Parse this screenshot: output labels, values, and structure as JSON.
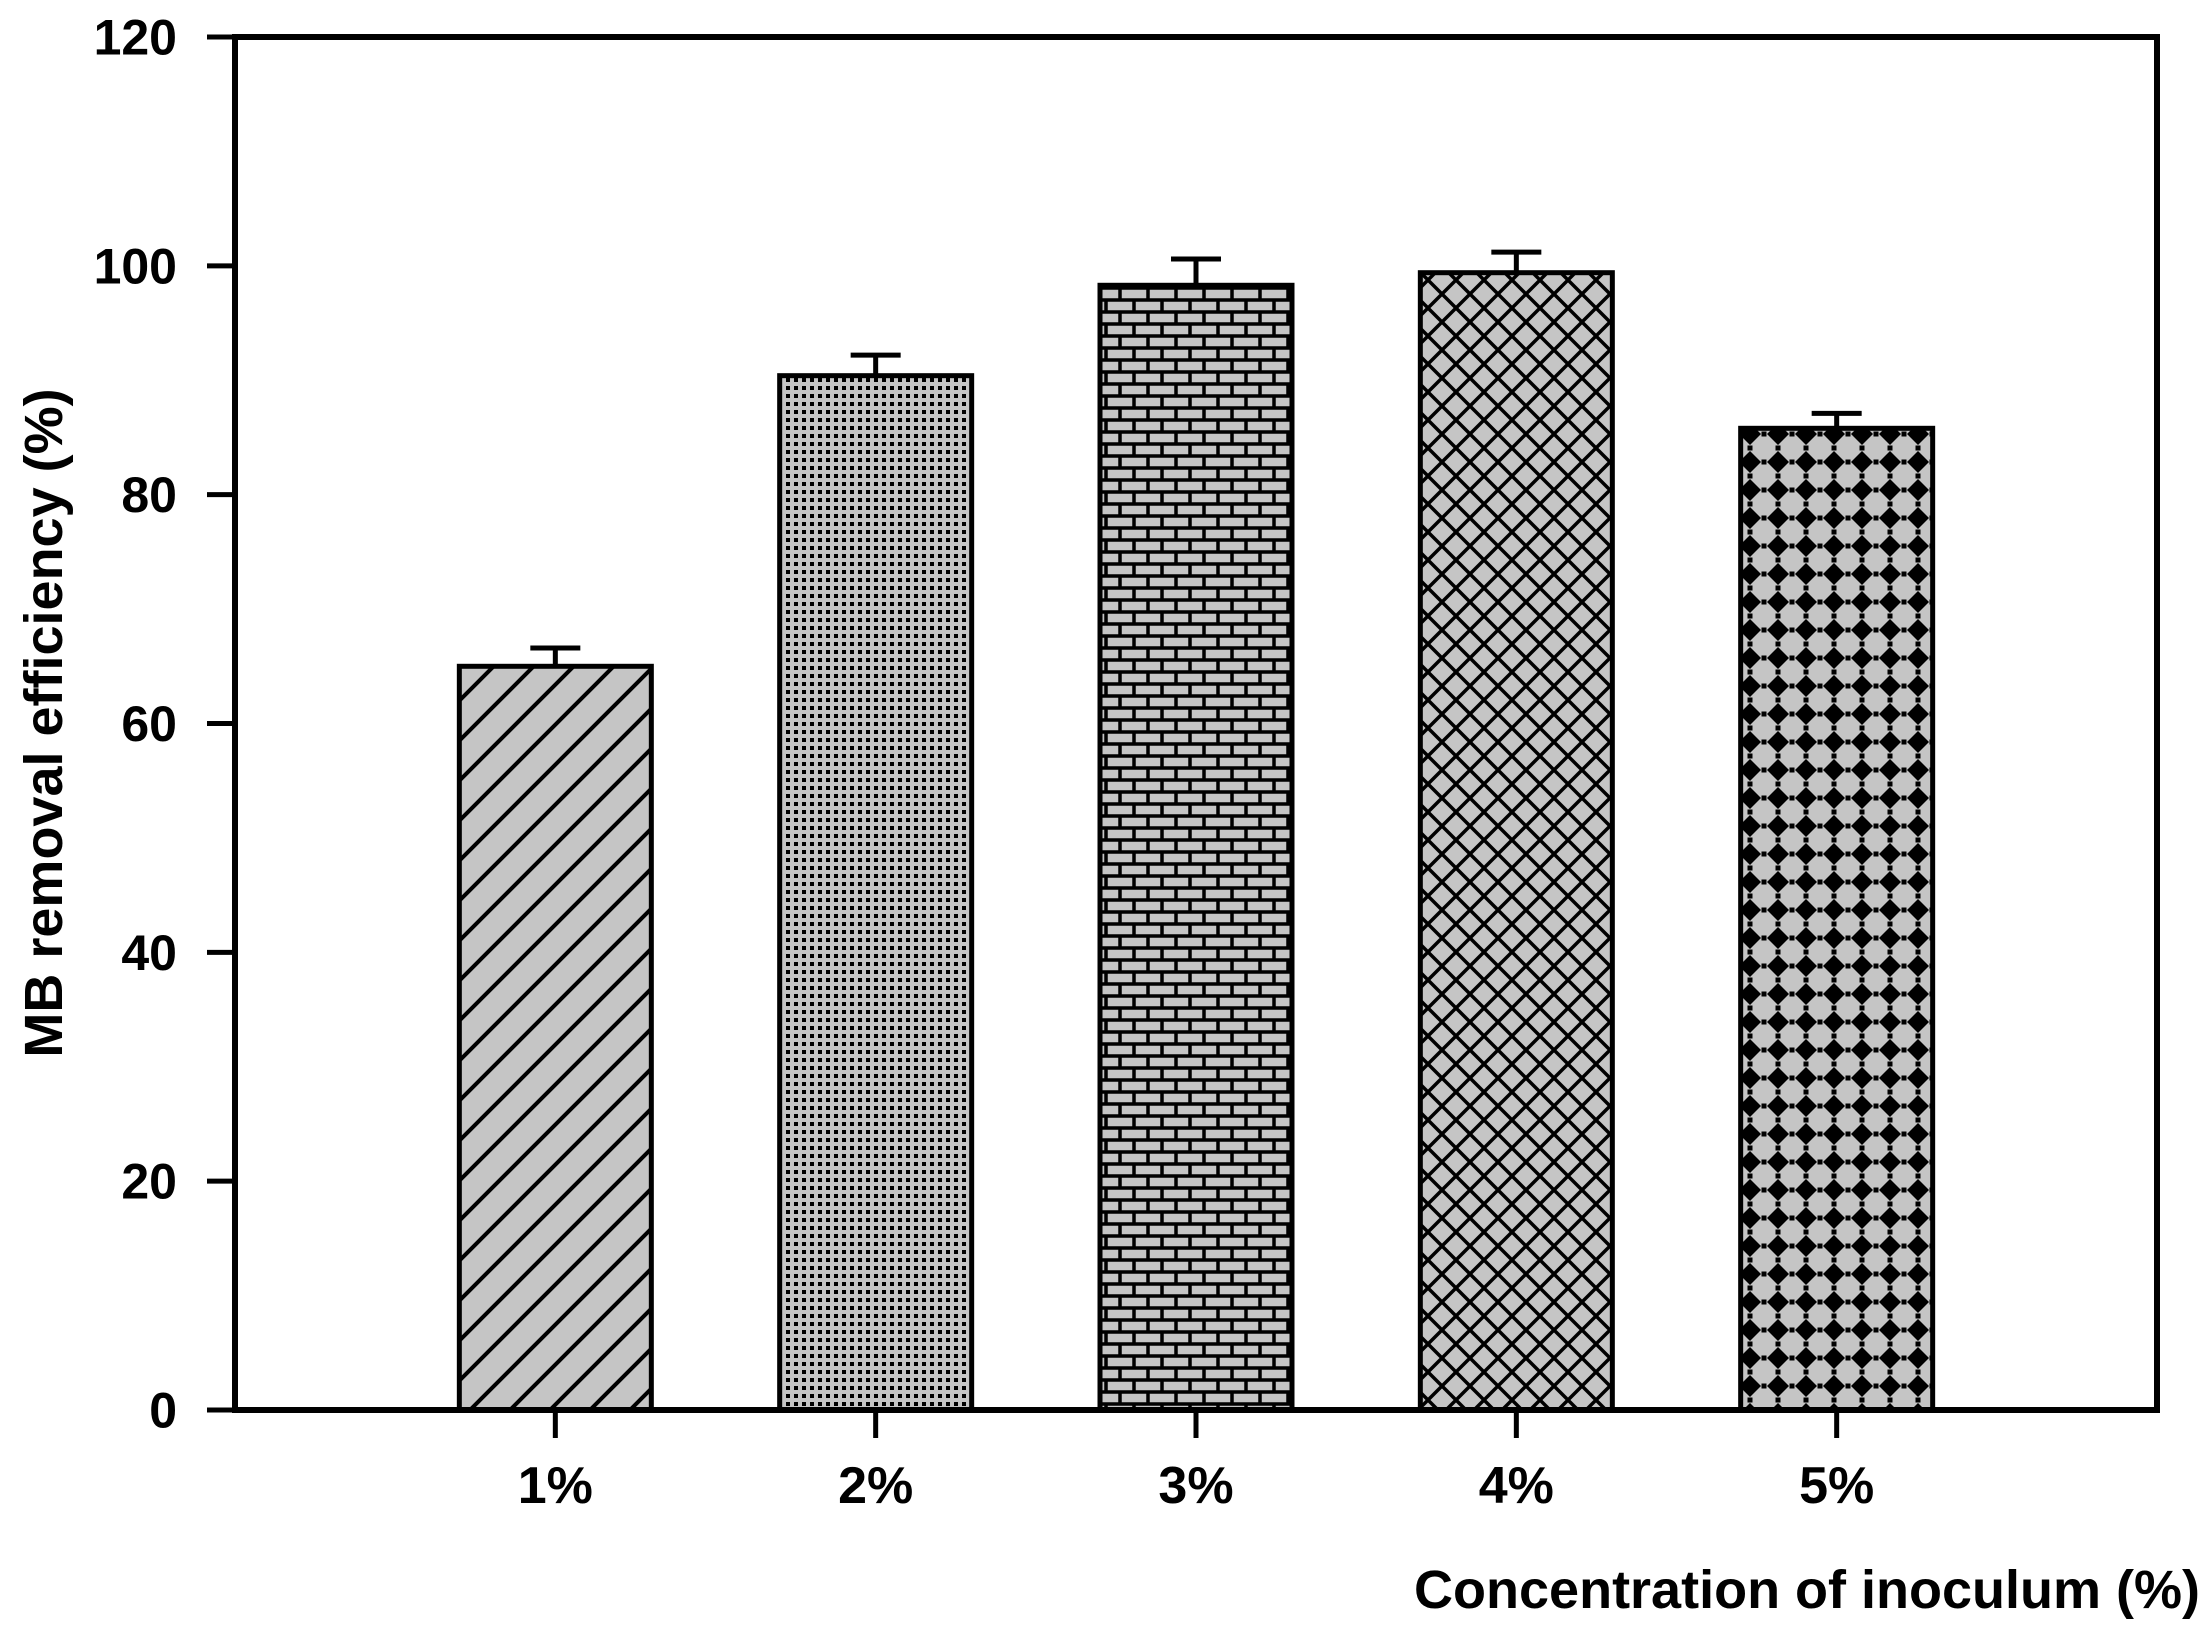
{
  "chart_data": {
    "type": "bar",
    "title": "",
    "xlabel": "Concentration of inoculum (%)",
    "ylabel": "MB removal efficiency (%)",
    "categories": [
      "1%",
      "2%",
      "3%",
      "4%",
      "5%"
    ],
    "values": [
      65.0,
      90.4,
      98.3,
      99.4,
      85.8
    ],
    "error_plus": [
      1.6,
      1.8,
      2.3,
      1.8,
      1.3
    ],
    "bar_patterns": [
      "diagonal-hatch",
      "dots",
      "bricks",
      "crosshatch",
      "diamonds"
    ],
    "ylim": [
      0,
      120
    ],
    "yticks": [
      0,
      20,
      40,
      60,
      80,
      100,
      120
    ],
    "grid": false,
    "legend_position": "none",
    "bar_fill_color": "#c5c5c5",
    "line_color": "#000000",
    "background_color": "#ffffff"
  }
}
